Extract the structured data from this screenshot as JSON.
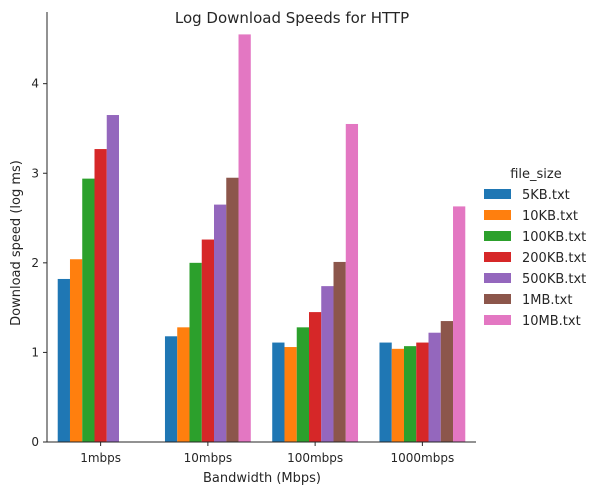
{
  "chart_data": {
    "type": "bar",
    "title": "Log Download Speeds for HTTP",
    "xlabel": "Bandwidth (Mbps)",
    "ylabel": "Download speed (log ms)",
    "categories": [
      "1mbps",
      "10mbps",
      "100mbps",
      "1000mbps"
    ],
    "ylim": [
      0,
      4.8
    ],
    "yticks": [
      0,
      1,
      2,
      3,
      4
    ],
    "grid": false,
    "legend_position": "right",
    "legend_title": "file_size",
    "series": [
      {
        "name": "5KB.txt",
        "color": "#1f77b4",
        "values": [
          1.82,
          1.18,
          1.11,
          1.11
        ]
      },
      {
        "name": "10KB.txt",
        "color": "#ff7f0e",
        "values": [
          2.04,
          1.28,
          1.06,
          1.04
        ]
      },
      {
        "name": "100KB.txt",
        "color": "#2ca02c",
        "values": [
          2.94,
          2.0,
          1.28,
          1.07
        ]
      },
      {
        "name": "200KB.txt",
        "color": "#d62728",
        "values": [
          3.27,
          2.26,
          1.45,
          1.11
        ]
      },
      {
        "name": "500KB.txt",
        "color": "#9467bd",
        "values": [
          3.65,
          2.65,
          1.74,
          1.22
        ]
      },
      {
        "name": "1MB.txt",
        "color": "#8c564b",
        "values": [
          null,
          2.95,
          2.01,
          1.35
        ]
      },
      {
        "name": "10MB.txt",
        "color": "#e377c2",
        "values": [
          null,
          4.55,
          3.55,
          2.63
        ]
      }
    ]
  }
}
